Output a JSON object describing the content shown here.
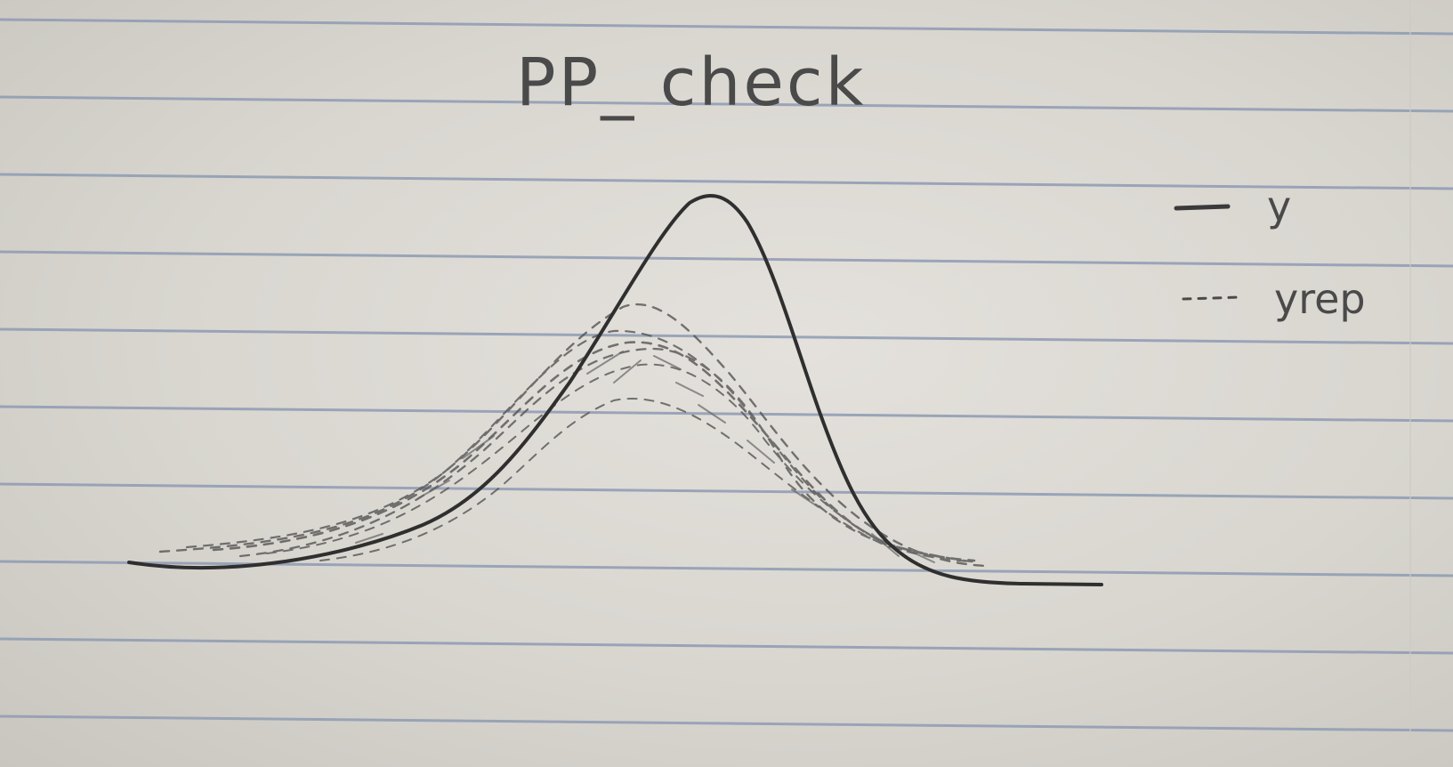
{
  "title": "PP_ check",
  "legend": {
    "items": [
      {
        "label": "y",
        "style": "solid"
      },
      {
        "label": "yrep",
        "style": "dashed"
      }
    ]
  },
  "colors": {
    "paper": "#dcd9d3",
    "rule_line": "#8e9bb3",
    "pencil": "#3a3a3a",
    "pencil_light": "#5a5a5a"
  }
}
